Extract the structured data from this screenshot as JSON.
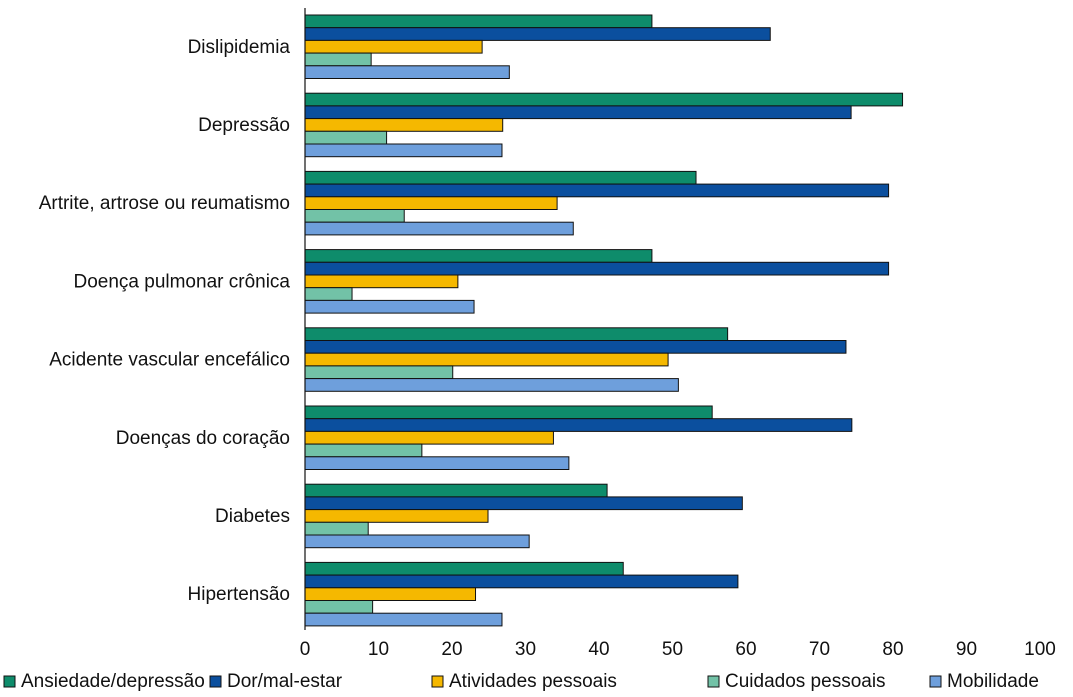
{
  "chart_data": {
    "type": "bar",
    "orientation": "horizontal",
    "categories": [
      "Dislipidemia",
      "Depressão",
      "Artrite, artrose ou reumatismo",
      "Doença pulmonar crônica",
      "Acidente vascular encefálico",
      "Doenças do coração",
      "Diabetes",
      "Hipertensão"
    ],
    "series": [
      {
        "name": "Ansiedade/depressão",
        "color": "#0e8c6b",
        "values": [
          47.2,
          81.3,
          53.2,
          47.2,
          57.5,
          55.4,
          41.1,
          43.3
        ]
      },
      {
        "name": "Dor/mal-estar",
        "color": "#0b4f9e",
        "values": [
          63.3,
          74.3,
          79.4,
          79.4,
          73.6,
          74.4,
          59.5,
          58.9
        ]
      },
      {
        "name": "Atividades pessoais",
        "color": "#f5b800",
        "values": [
          24.1,
          26.9,
          34.3,
          20.8,
          49.4,
          33.8,
          24.9,
          23.2
        ]
      },
      {
        "name": "Cuidados pessoais",
        "color": "#72c2a7",
        "values": [
          9.0,
          11.1,
          13.5,
          6.4,
          20.1,
          15.9,
          8.6,
          9.2
        ]
      },
      {
        "name": "Mobilidade",
        "color": "#6e9fdc",
        "values": [
          27.8,
          26.8,
          36.5,
          23.0,
          50.8,
          35.9,
          30.5,
          26.8
        ]
      }
    ],
    "xlim": [
      0,
      100
    ],
    "xticks": [
      "0",
      "10",
      "20",
      "30",
      "40",
      "50",
      "60",
      "70",
      "80",
      "90",
      "100"
    ],
    "legend_position": "bottom",
    "grid": false
  }
}
